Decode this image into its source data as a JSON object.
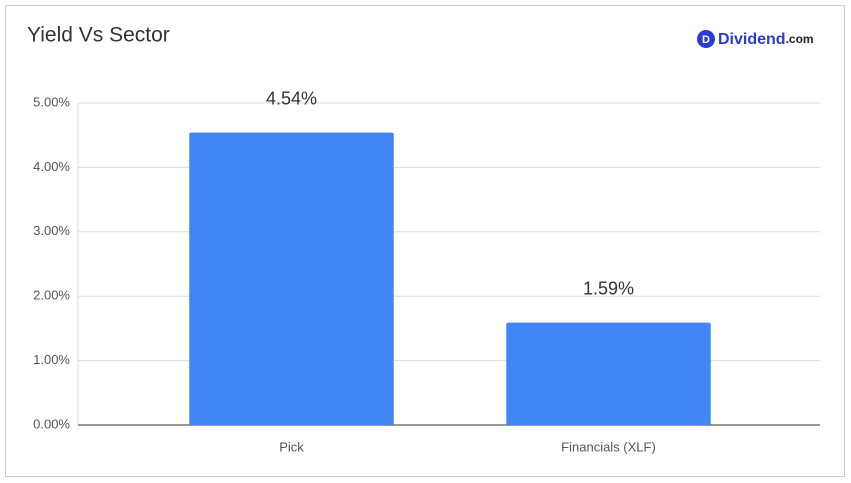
{
  "chart_data": {
    "type": "bar",
    "title": "Yield Vs Sector",
    "brand": {
      "icon": "D",
      "name": "Dividend",
      "suffix": ".com"
    },
    "categories": [
      "Pick",
      "Financials (XLF)"
    ],
    "values": [
      4.54,
      1.59
    ],
    "value_labels": [
      "4.54%",
      "1.59%"
    ],
    "color": "#4285f4",
    "ylim": [
      0,
      5
    ],
    "yticks": [
      {
        "value": 0,
        "label": "0.00%"
      },
      {
        "value": 1,
        "label": "1.00%"
      },
      {
        "value": 2,
        "label": "2.00%"
      },
      {
        "value": 3,
        "label": "3.00%"
      },
      {
        "value": 4,
        "label": "4.00%"
      },
      {
        "value": 5,
        "label": "5.00%"
      }
    ],
    "grid": true
  }
}
